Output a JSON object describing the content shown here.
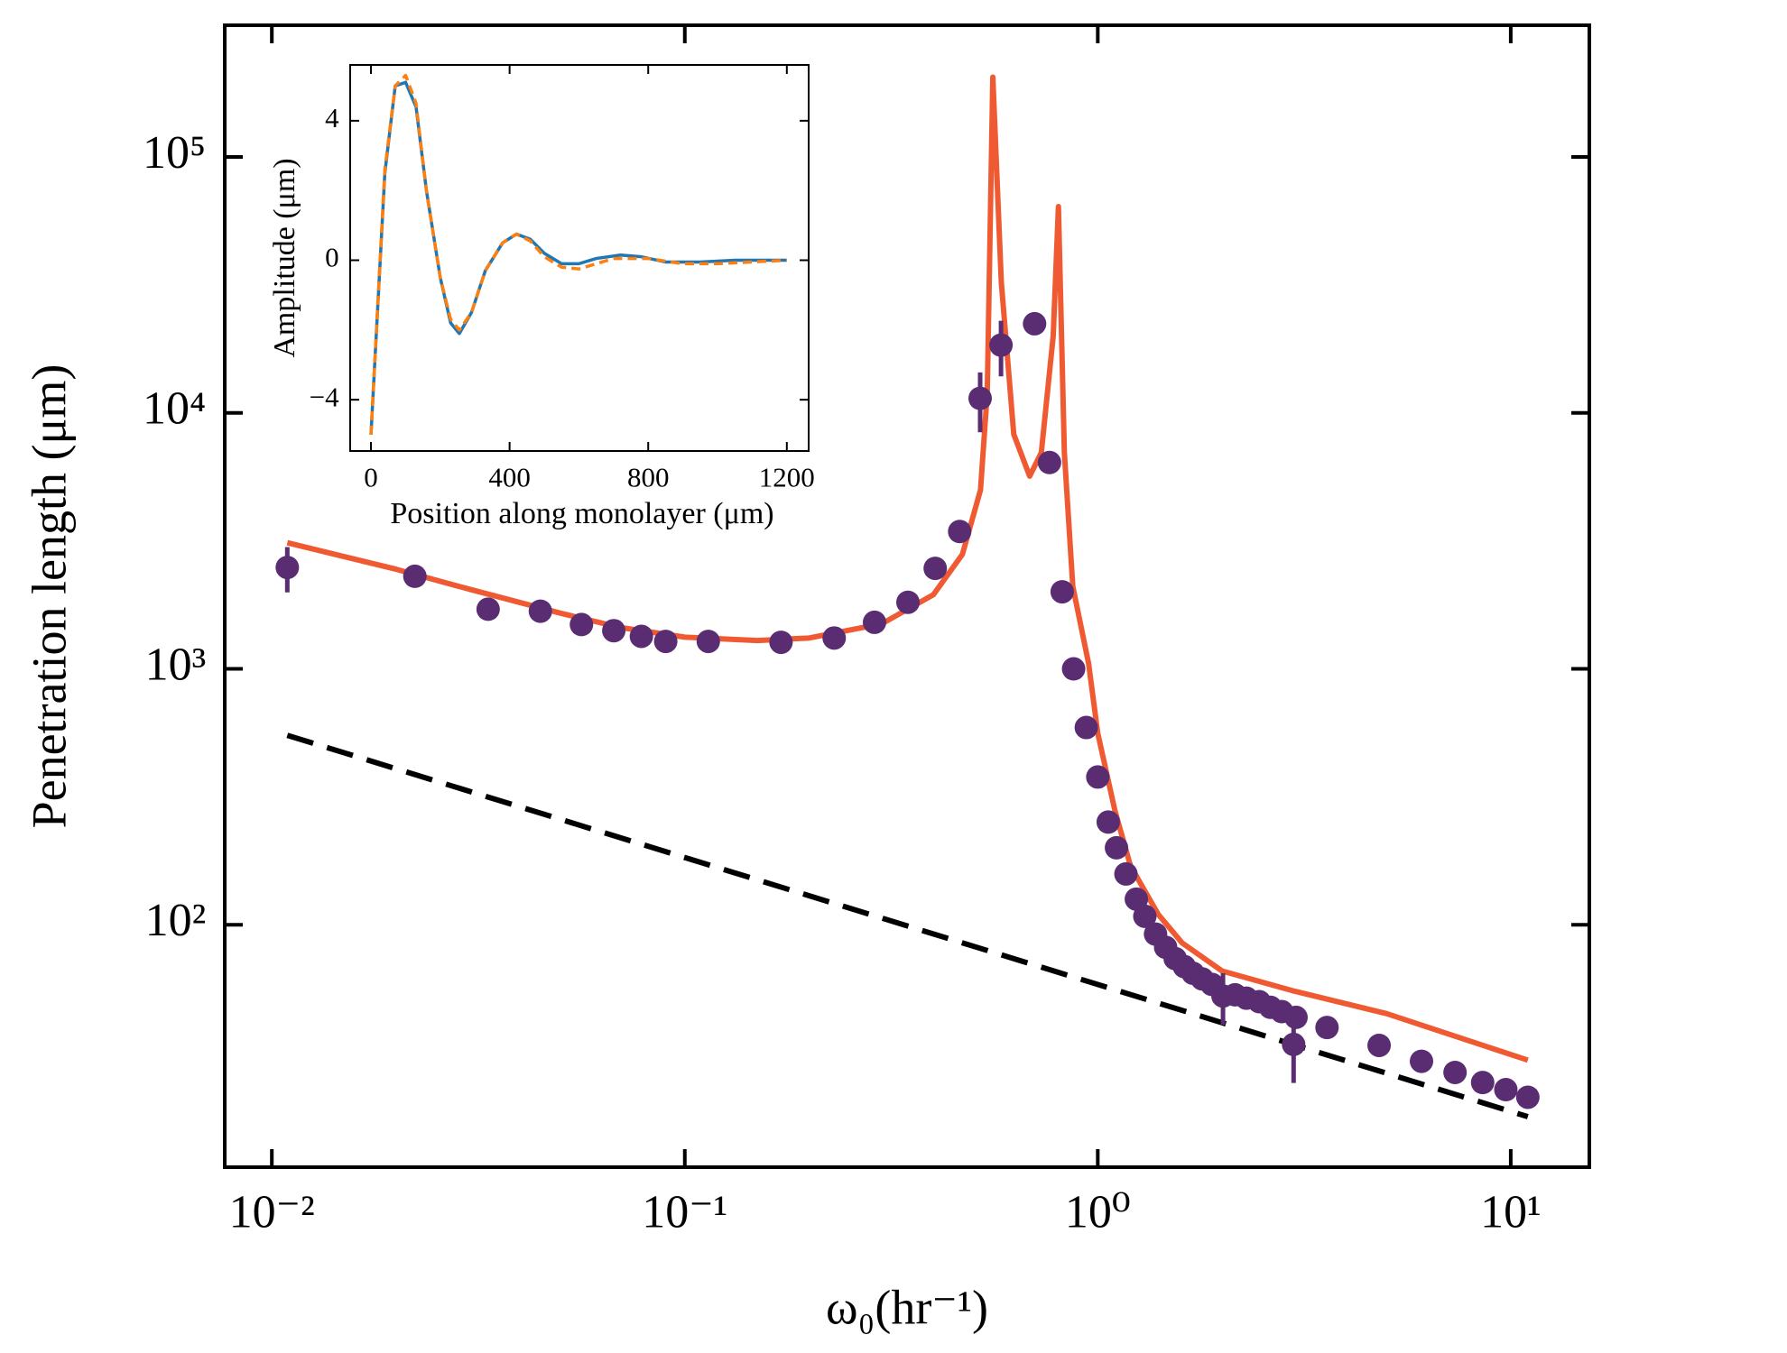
{
  "chart_data": [
    {
      "type": "scatter",
      "xlabel": "ω₀(hr⁻¹)",
      "ylabel": "Penetration length (μm)",
      "xscale": "log",
      "yscale": "log",
      "xlim": [
        0.00769,
        15.5
      ],
      "ylim": [
        11.3,
        327000
      ],
      "xticks": [
        {
          "value": 0.01,
          "label": "10⁻²"
        },
        {
          "value": 0.1,
          "label": "10⁻¹"
        },
        {
          "value": 1,
          "label": "10⁰"
        },
        {
          "value": 10,
          "label": "10¹"
        }
      ],
      "yticks": [
        {
          "value": 100,
          "label": "10²"
        },
        {
          "value": 1000,
          "label": "10³"
        },
        {
          "value": 10000,
          "label": "10⁴"
        },
        {
          "value": 100000,
          "label": "10⁵"
        }
      ],
      "series": [
        {
          "type": "line",
          "style": "solid",
          "color": "#f05a32",
          "x": [
            0.0109,
            0.02,
            0.03,
            0.05,
            0.07,
            0.1,
            0.15,
            0.2,
            0.3,
            0.4,
            0.47,
            0.52,
            0.54,
            0.557,
            0.584,
            0.626,
            0.684,
            0.73,
            0.78,
            0.803,
            0.83,
            0.87,
            0.95,
            1.0,
            1.1,
            1.2,
            1.4,
            1.6,
            2.0,
            3.0,
            5.0,
            11.0
          ],
          "values": [
            3110,
            2450,
            2050,
            1650,
            1450,
            1330,
            1290,
            1320,
            1500,
            1950,
            2800,
            5000,
            12000,
            205000,
            32400,
            8250,
            5660,
            7000,
            20000,
            64000,
            7000,
            2100,
            1050,
            560,
            280,
            170,
            110,
            85,
            66,
            55,
            45,
            29.6
          ]
        },
        {
          "type": "line",
          "style": "dashed",
          "color": "#000000",
          "x": [
            0.0109,
            11.0
          ],
          "values": [
            550,
            17.8
          ]
        },
        {
          "type": "scatter",
          "color": "#5a2d73",
          "x": [
            0.0109,
            0.0222,
            0.0334,
            0.0447,
            0.0562,
            0.0673,
            0.0785,
            0.0899,
            0.114,
            0.171,
            0.23,
            0.288,
            0.347,
            0.404,
            0.463,
            0.519,
            0.583,
            0.703,
            0.764,
            0.82,
            0.874,
            0.938,
            1.0,
            1.06,
            1.11,
            1.17,
            1.24,
            1.3,
            1.38,
            1.46,
            1.54,
            1.62,
            1.7,
            1.79,
            1.89,
            2.01,
            2.15,
            2.29,
            2.46,
            2.62,
            2.79,
            3.02,
            2.98,
            3.59,
            4.8,
            6.08,
            7.33,
            8.55,
            9.73,
            11.0
          ],
          "values": [
            2490,
            2300,
            1710,
            1680,
            1490,
            1410,
            1340,
            1280,
            1280,
            1270,
            1320,
            1520,
            1820,
            2470,
            3440,
            11400,
            18400,
            22300,
            6400,
            2000,
            1000,
            590,
            378,
            252,
            200,
            158,
            126,
            108,
            92,
            81.7,
            73.8,
            68.7,
            64.7,
            61.5,
            58.5,
            52.7,
            53.3,
            51.7,
            50.1,
            47.6,
            45.8,
            43.5,
            34.1,
            39.7,
            33.8,
            29.3,
            26.5,
            24.2,
            22.7,
            21.2
          ],
          "errors": [
            500,
            0,
            0,
            0,
            0,
            0,
            0,
            0,
            0,
            0,
            0,
            0,
            0,
            0,
            0,
            3000,
            4500,
            1500,
            0,
            0,
            0,
            0,
            0,
            0,
            0,
            0,
            0,
            0,
            0,
            0,
            0,
            0,
            0,
            0,
            0,
            12,
            0,
            0,
            0,
            0,
            0,
            0,
            10,
            0,
            0,
            0,
            0,
            0,
            0,
            0
          ]
        }
      ]
    },
    {
      "type": "line",
      "xlabel": "Position along monolayer (μm)",
      "ylabel": "Amplitude (μm)",
      "xlim": [
        -60,
        1263
      ],
      "ylim": [
        -5.47,
        5.6
      ],
      "xticks": [
        0,
        400,
        800,
        1200
      ],
      "yticks": [
        {
          "value": -4,
          "label": "−4"
        },
        0,
        4
      ],
      "series": [
        {
          "type": "line",
          "style": "solid",
          "color": "#1f77b4",
          "x": [
            0,
            40,
            70,
            100,
            130,
            160,
            200,
            230,
            255,
            290,
            330,
            380,
            420,
            460,
            500,
            550,
            600,
            650,
            720,
            780,
            850,
            950,
            1050,
            1200
          ],
          "values": [
            -5.0,
            2.5,
            5.0,
            5.1,
            4.4,
            2.0,
            -0.5,
            -1.8,
            -2.1,
            -1.5,
            -0.3,
            0.5,
            0.75,
            0.6,
            0.2,
            -0.1,
            -0.1,
            0.05,
            0.15,
            0.1,
            -0.05,
            -0.05,
            0.0,
            0.0
          ]
        },
        {
          "type": "line",
          "style": "dashed",
          "color": "#ff7f0e",
          "x": [
            0,
            40,
            70,
            100,
            130,
            160,
            200,
            230,
            255,
            290,
            330,
            380,
            420,
            460,
            500,
            550,
            600,
            700,
            800,
            900,
            1000,
            1100,
            1200
          ],
          "values": [
            -5.0,
            2.6,
            5.0,
            5.3,
            4.5,
            2.0,
            -0.5,
            -1.7,
            -2.0,
            -1.5,
            -0.3,
            0.5,
            0.75,
            0.55,
            0.1,
            -0.2,
            -0.25,
            0.05,
            0.05,
            -0.1,
            -0.1,
            -0.05,
            0.0
          ]
        }
      ]
    }
  ]
}
